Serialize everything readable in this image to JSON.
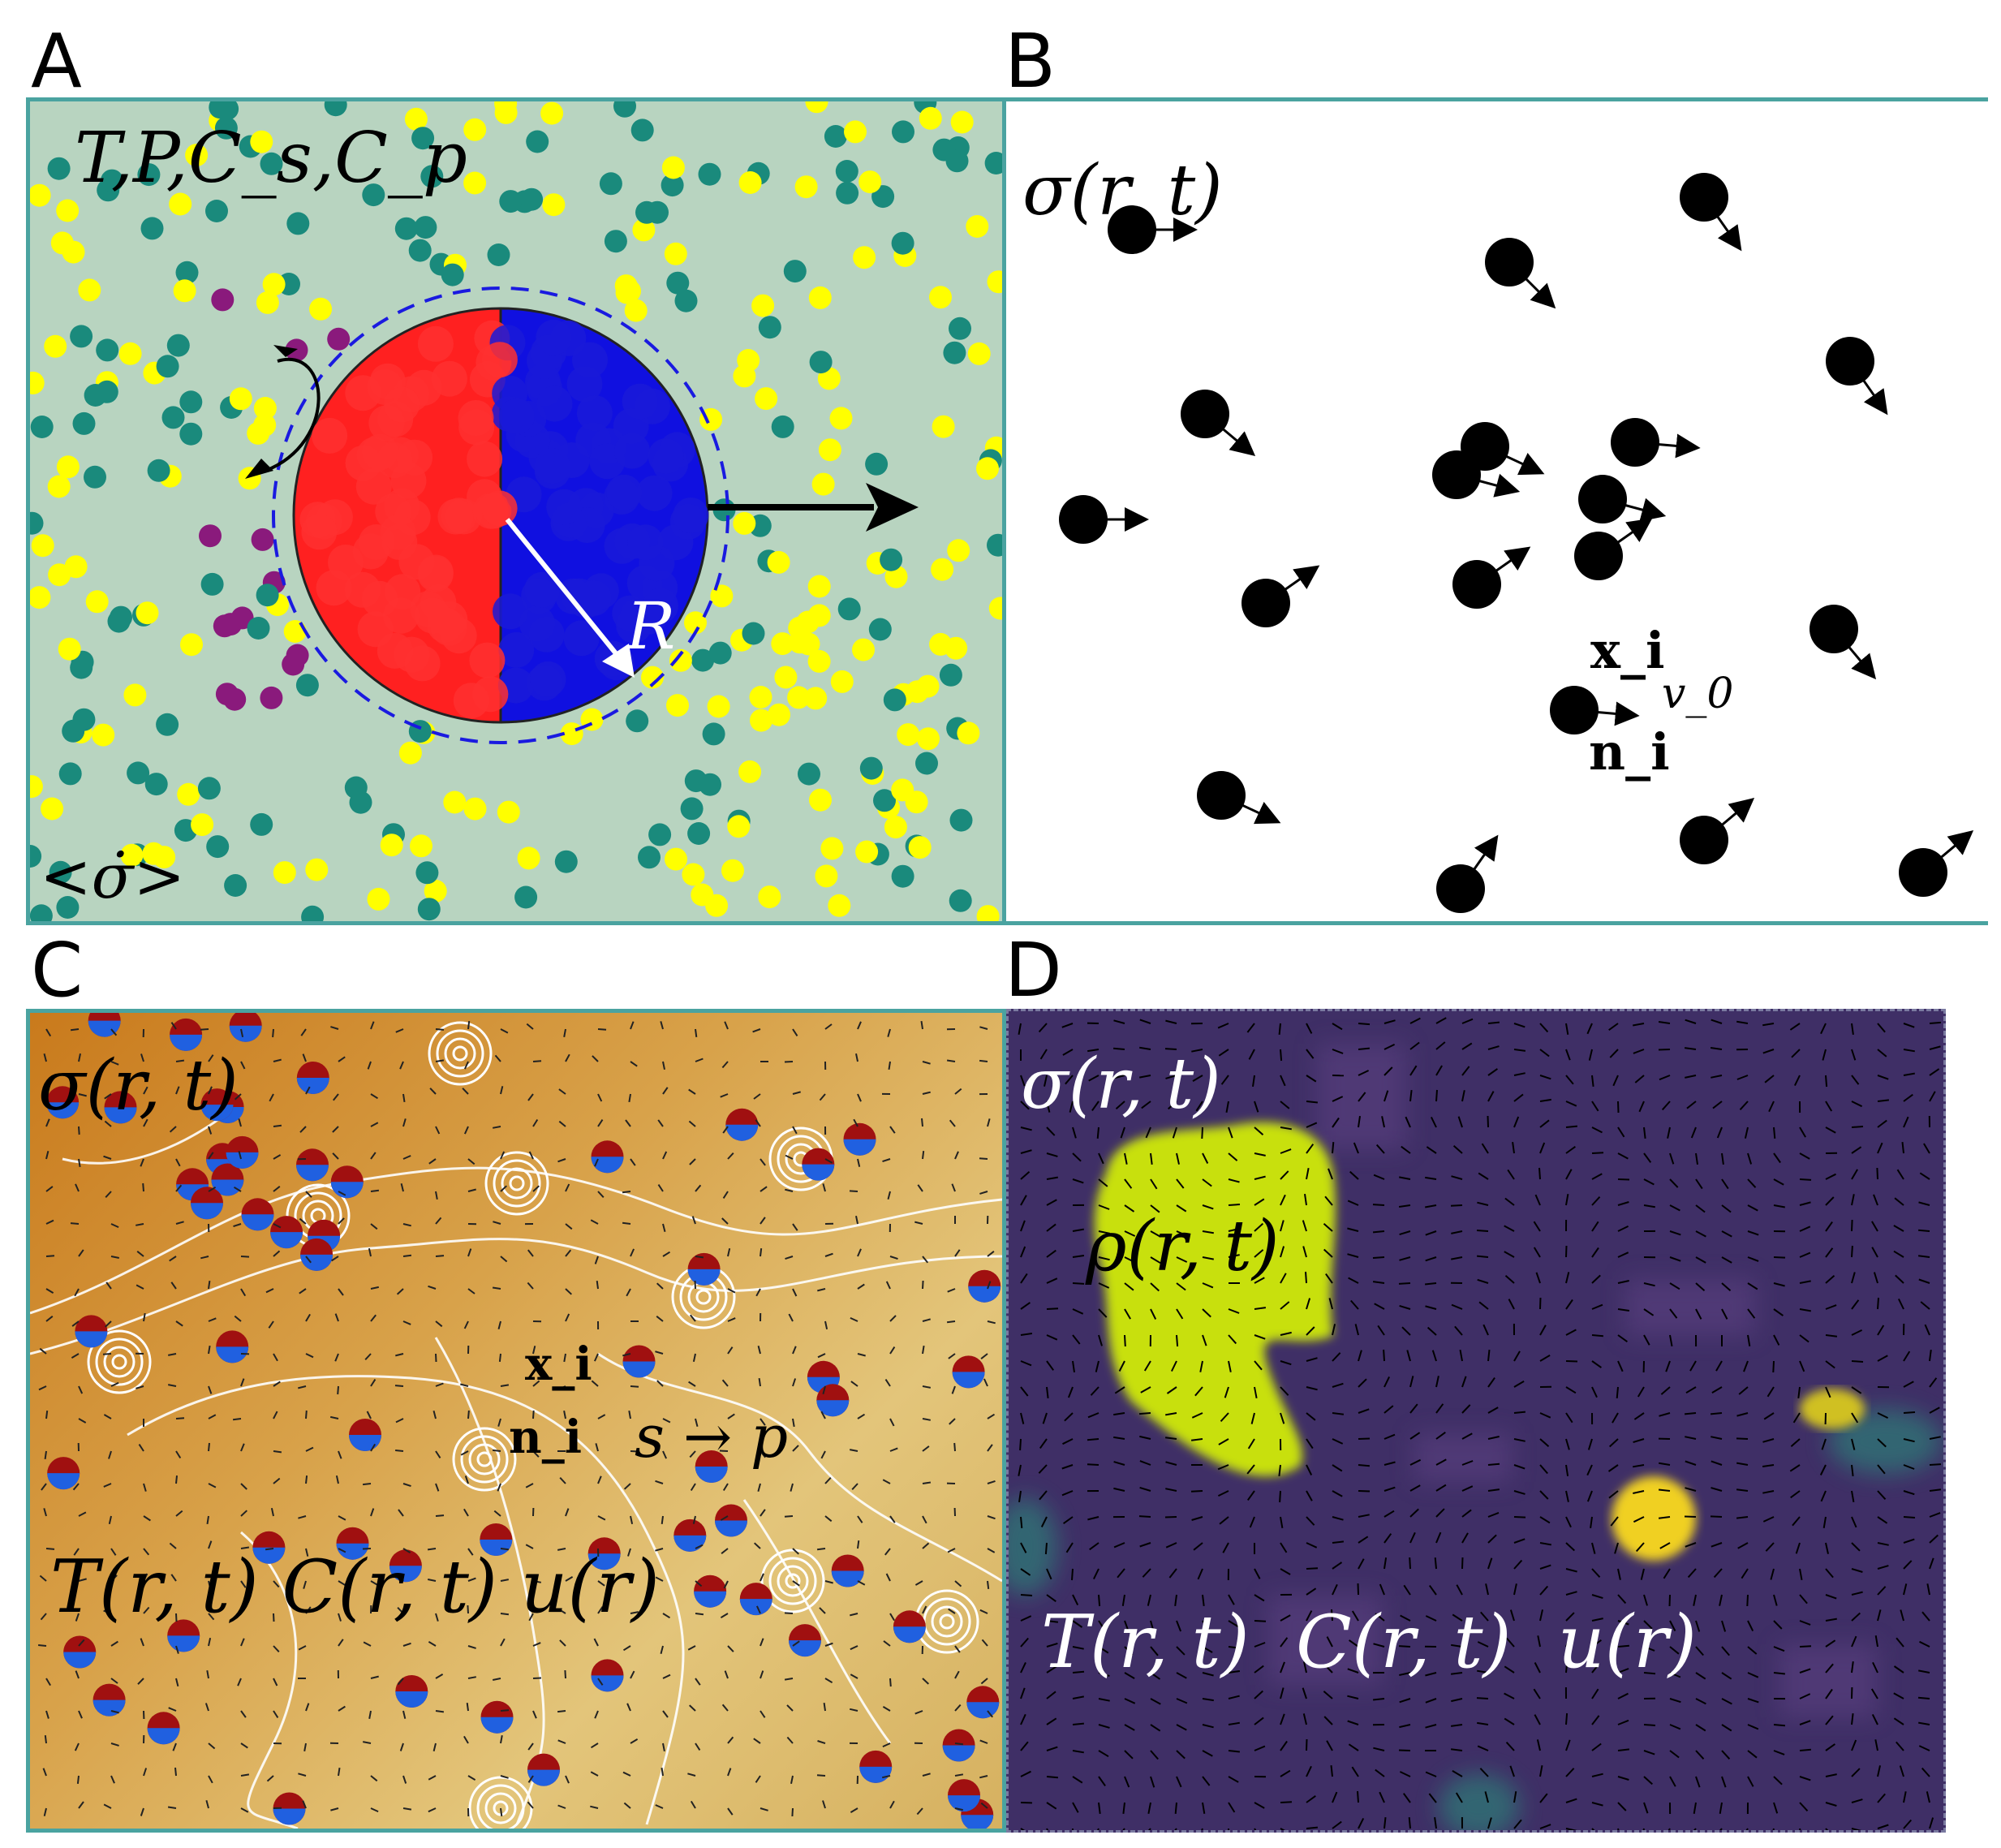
{
  "letters": {
    "a": "A",
    "b": "B",
    "c": "C",
    "d": "D"
  },
  "panel_a": {
    "top_label": "T,P,C_s,C_p",
    "bottom_label": "<σ̇>",
    "radius_label": "R",
    "colors": {
      "bg": "#b8d4c0",
      "teal": "#1a8a7c",
      "yellow": "#ffff00",
      "purple": "#8a1a7c",
      "red": "#ff1a1a",
      "blue": "#1010e0"
    }
  },
  "panel_b": {
    "field_label": "σ(r, t)",
    "x_label": "x_i",
    "n_label": "n_i",
    "v_label": "v_0"
  },
  "panel_c": {
    "field_label": "σ(r, t)",
    "x_label": "x_i",
    "n_label": "n_i",
    "reaction_label": "s → p",
    "bottom_label": "T(r, t) C(r, t) u(r)"
  },
  "panel_d": {
    "field_label": "σ(r, t)",
    "rho_label": "ρ(r, t)",
    "bottom_label": "T(r, t)  C(r, t)  u(r)",
    "colors": {
      "bg": "#3f2f66",
      "blob": "#c8e010",
      "dot": "#f0d020"
    }
  }
}
